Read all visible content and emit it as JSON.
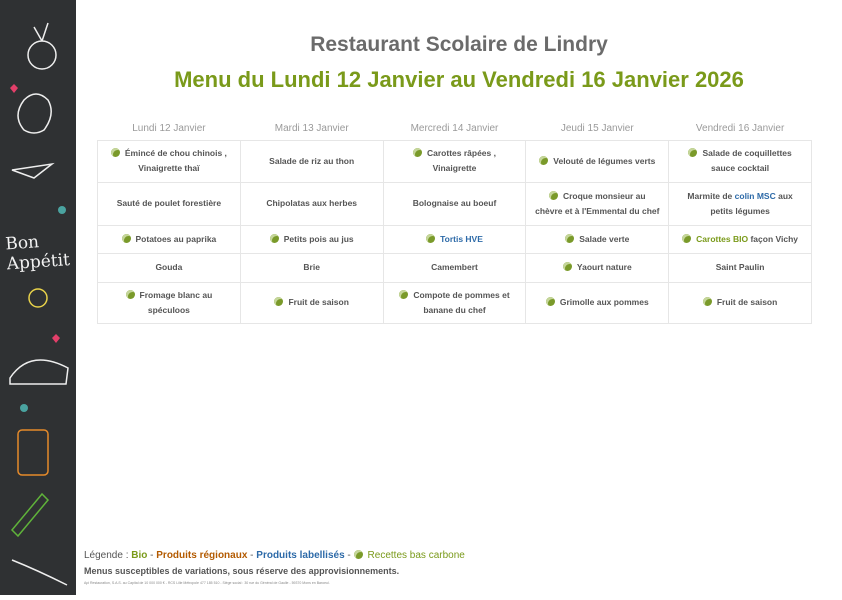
{
  "sidebar": {
    "bon_appetit": "Bon Appétit"
  },
  "header": {
    "title": "Restaurant Scolaire de Lindry",
    "subtitle": "Menu du Lundi 12 Janvier au Vendredi 16 Janvier 2026"
  },
  "days": [
    "Lundi 12 Janvier",
    "Mardi 13 Janvier",
    "Mercredi 14 Janvier",
    "Jeudi 15 Janvier",
    "Vendredi 16 Janvier"
  ],
  "rows": [
    [
      {
        "eco": true,
        "parts": [
          [
            "Émincé de chou chinois , Vinaigrette thaï",
            ""
          ]
        ]
      },
      {
        "eco": false,
        "parts": [
          [
            "Salade de riz au thon",
            ""
          ]
        ]
      },
      {
        "eco": true,
        "parts": [
          [
            "Carottes râpées , Vinaigrette",
            ""
          ]
        ]
      },
      {
        "eco": true,
        "parts": [
          [
            "Velouté de légumes verts",
            ""
          ]
        ]
      },
      {
        "eco": true,
        "parts": [
          [
            "Salade de coquillettes sauce cocktail",
            ""
          ]
        ]
      }
    ],
    [
      {
        "eco": false,
        "parts": [
          [
            "Sauté de poulet forestière",
            ""
          ]
        ]
      },
      {
        "eco": false,
        "parts": [
          [
            "Chipolatas aux herbes",
            ""
          ]
        ]
      },
      {
        "eco": false,
        "parts": [
          [
            "Bolognaise au boeuf",
            ""
          ]
        ]
      },
      {
        "eco": true,
        "parts": [
          [
            "Croque monsieur au chèvre et à l'Emmental du chef",
            ""
          ]
        ]
      },
      {
        "eco": false,
        "parts": [
          [
            "Marmite de ",
            ""
          ],
          [
            "colin MSC",
            "lab"
          ],
          [
            " aux petits légumes",
            ""
          ]
        ]
      }
    ],
    [
      {
        "eco": true,
        "parts": [
          [
            "Potatoes au paprika",
            ""
          ]
        ]
      },
      {
        "eco": true,
        "parts": [
          [
            "Petits pois au jus",
            ""
          ]
        ]
      },
      {
        "eco": true,
        "parts": [
          [
            "Tortis HVE",
            "lab"
          ]
        ]
      },
      {
        "eco": true,
        "parts": [
          [
            "Salade verte",
            ""
          ]
        ]
      },
      {
        "eco": true,
        "parts": [
          [
            "Carottes BIO",
            "bio"
          ],
          [
            " façon Vichy",
            ""
          ]
        ]
      }
    ],
    [
      {
        "eco": false,
        "parts": [
          [
            "Gouda",
            ""
          ]
        ]
      },
      {
        "eco": false,
        "parts": [
          [
            "Brie",
            ""
          ]
        ]
      },
      {
        "eco": false,
        "parts": [
          [
            "Camembert",
            ""
          ]
        ]
      },
      {
        "eco": true,
        "parts": [
          [
            "Yaourt nature",
            ""
          ]
        ]
      },
      {
        "eco": false,
        "parts": [
          [
            "Saint Paulin",
            ""
          ]
        ]
      }
    ],
    [
      {
        "eco": true,
        "parts": [
          [
            "Fromage blanc au spéculoos",
            ""
          ]
        ]
      },
      {
        "eco": true,
        "parts": [
          [
            "Fruit de saison",
            ""
          ]
        ]
      },
      {
        "eco": true,
        "parts": [
          [
            "Compote de pommes et banane du chef",
            ""
          ]
        ]
      },
      {
        "eco": true,
        "parts": [
          [
            "Grimolle aux pommes",
            ""
          ]
        ]
      },
      {
        "eco": true,
        "parts": [
          [
            "Fruit de saison",
            ""
          ]
        ]
      }
    ]
  ],
  "legend": {
    "label": "Légende : ",
    "bio": "Bio",
    "sep": " - ",
    "regional": "Produits régionaux",
    "labelled": "Produits labellisés",
    "low_carbon": "Recettes bas carbone"
  },
  "note": "Menus susceptibles de variations, sous réserve des approvisionnements.",
  "fine_print": "Api Restauration, S.A.S. au Capital de 10 000 000 € - RCS Lille Métropole 477 185 510 - Siège social : 30 rue du Général de Gaulle - 59370 Mons en Baroeul.",
  "colors": {
    "bio": "#7a9a1a",
    "regional": "#b35a00",
    "labelled": "#2d6aa8",
    "title": "#6b6b6b"
  }
}
